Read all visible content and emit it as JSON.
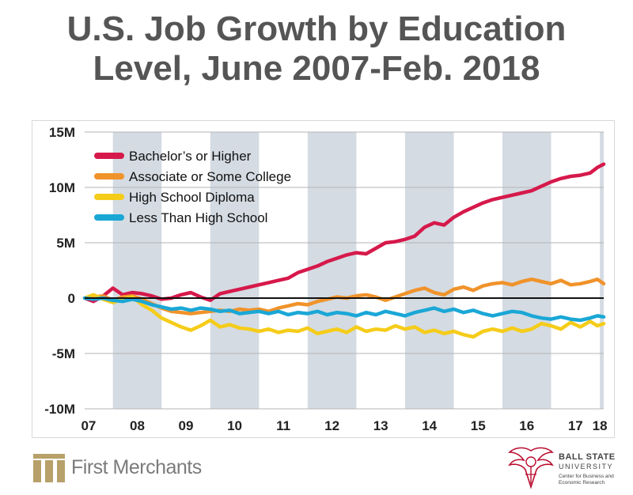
{
  "title_line1": "U.S. Job Growth by Education",
  "title_line2": "Level, June 2007-Feb. 2018",
  "chart_data": {
    "type": "line",
    "x_start": 2007.42,
    "x_end": 2018.08,
    "ylim": [
      -10,
      15
    ],
    "y_ticks": [
      15,
      10,
      5,
      0,
      -5,
      -10
    ],
    "y_tick_labels": [
      "15M",
      "10M",
      "5M",
      "0",
      "-5M",
      "-10M"
    ],
    "x_tick_labels": [
      "07",
      "08",
      "09",
      "10",
      "11",
      "12",
      "13",
      "14",
      "15",
      "16",
      "17",
      "18"
    ],
    "x_tick_positions": [
      2007.5,
      2008.5,
      2009.5,
      2010.5,
      2011.5,
      2012.5,
      2013.5,
      2014.5,
      2015.5,
      2016.5,
      2017.5,
      2018.0
    ],
    "shaded_bands": [
      [
        2008.0,
        2009.0
      ],
      [
        2010.0,
        2011.0
      ],
      [
        2012.0,
        2013.0
      ],
      [
        2014.0,
        2015.0
      ],
      [
        2016.0,
        2017.0
      ],
      [
        2018.0,
        2018.08
      ]
    ],
    "legend_position": "top-left",
    "series": [
      {
        "name": "Bachelor’s or Higher",
        "color": "#d6194b",
        "points": [
          [
            2007.42,
            0
          ],
          [
            2007.6,
            -0.3
          ],
          [
            2007.8,
            0.2
          ],
          [
            2008.0,
            0.9
          ],
          [
            2008.2,
            0.3
          ],
          [
            2008.4,
            0.5
          ],
          [
            2008.6,
            0.4
          ],
          [
            2008.8,
            0.2
          ],
          [
            2009.0,
            -0.1
          ],
          [
            2009.2,
            0
          ],
          [
            2009.4,
            0.3
          ],
          [
            2009.6,
            0.5
          ],
          [
            2009.8,
            0.1
          ],
          [
            2010.0,
            -0.2
          ],
          [
            2010.2,
            0.4
          ],
          [
            2010.4,
            0.6
          ],
          [
            2010.6,
            0.8
          ],
          [
            2010.8,
            1.0
          ],
          [
            2011.0,
            1.2
          ],
          [
            2011.2,
            1.4
          ],
          [
            2011.4,
            1.6
          ],
          [
            2011.6,
            1.8
          ],
          [
            2011.8,
            2.3
          ],
          [
            2012.0,
            2.6
          ],
          [
            2012.2,
            2.9
          ],
          [
            2012.4,
            3.3
          ],
          [
            2012.6,
            3.6
          ],
          [
            2012.8,
            3.9
          ],
          [
            2013.0,
            4.1
          ],
          [
            2013.2,
            4.0
          ],
          [
            2013.4,
            4.5
          ],
          [
            2013.6,
            5.0
          ],
          [
            2013.8,
            5.1
          ],
          [
            2014.0,
            5.3
          ],
          [
            2014.2,
            5.6
          ],
          [
            2014.4,
            6.4
          ],
          [
            2014.6,
            6.8
          ],
          [
            2014.8,
            6.6
          ],
          [
            2015.0,
            7.3
          ],
          [
            2015.2,
            7.8
          ],
          [
            2015.4,
            8.2
          ],
          [
            2015.6,
            8.6
          ],
          [
            2015.8,
            8.9
          ],
          [
            2016.0,
            9.1
          ],
          [
            2016.2,
            9.3
          ],
          [
            2016.4,
            9.5
          ],
          [
            2016.6,
            9.7
          ],
          [
            2016.8,
            10.1
          ],
          [
            2017.0,
            10.5
          ],
          [
            2017.2,
            10.8
          ],
          [
            2017.4,
            11.0
          ],
          [
            2017.6,
            11.1
          ],
          [
            2017.8,
            11.3
          ],
          [
            2017.95,
            11.8
          ],
          [
            2018.08,
            12.1
          ]
        ]
      },
      {
        "name": "Associate or Some College",
        "color": "#f0932b",
        "points": [
          [
            2007.42,
            0
          ],
          [
            2007.6,
            0.1
          ],
          [
            2007.8,
            0.2
          ],
          [
            2008.0,
            -0.2
          ],
          [
            2008.2,
            0.1
          ],
          [
            2008.4,
            0.2
          ],
          [
            2008.6,
            -0.1
          ],
          [
            2008.8,
            -0.5
          ],
          [
            2009.0,
            -0.9
          ],
          [
            2009.2,
            -1.2
          ],
          [
            2009.4,
            -1.3
          ],
          [
            2009.6,
            -1.4
          ],
          [
            2009.8,
            -1.3
          ],
          [
            2010.0,
            -1.2
          ],
          [
            2010.2,
            -1.1
          ],
          [
            2010.4,
            -1.2
          ],
          [
            2010.6,
            -1.0
          ],
          [
            2010.8,
            -1.1
          ],
          [
            2011.0,
            -1.0
          ],
          [
            2011.2,
            -1.2
          ],
          [
            2011.4,
            -0.9
          ],
          [
            2011.6,
            -0.7
          ],
          [
            2011.8,
            -0.5
          ],
          [
            2012.0,
            -0.6
          ],
          [
            2012.2,
            -0.3
          ],
          [
            2012.4,
            -0.1
          ],
          [
            2012.6,
            0.1
          ],
          [
            2012.8,
            0
          ],
          [
            2013.0,
            0.2
          ],
          [
            2013.2,
            0.3
          ],
          [
            2013.4,
            0.1
          ],
          [
            2013.6,
            -0.2
          ],
          [
            2013.8,
            0.1
          ],
          [
            2014.0,
            0.4
          ],
          [
            2014.2,
            0.7
          ],
          [
            2014.4,
            0.9
          ],
          [
            2014.6,
            0.5
          ],
          [
            2014.8,
            0.3
          ],
          [
            2015.0,
            0.8
          ],
          [
            2015.2,
            1.0
          ],
          [
            2015.4,
            0.7
          ],
          [
            2015.6,
            1.1
          ],
          [
            2015.8,
            1.3
          ],
          [
            2016.0,
            1.4
          ],
          [
            2016.2,
            1.2
          ],
          [
            2016.4,
            1.5
          ],
          [
            2016.6,
            1.7
          ],
          [
            2016.8,
            1.5
          ],
          [
            2017.0,
            1.3
          ],
          [
            2017.2,
            1.6
          ],
          [
            2017.4,
            1.2
          ],
          [
            2017.6,
            1.3
          ],
          [
            2017.8,
            1.5
          ],
          [
            2017.95,
            1.7
          ],
          [
            2018.08,
            1.3
          ]
        ]
      },
      {
        "name": "High School Diploma",
        "color": "#f5cc19",
        "points": [
          [
            2007.42,
            0
          ],
          [
            2007.6,
            0.3
          ],
          [
            2007.8,
            -0.1
          ],
          [
            2008.0,
            -0.4
          ],
          [
            2008.2,
            -0.1
          ],
          [
            2008.4,
            0.1
          ],
          [
            2008.6,
            -0.6
          ],
          [
            2008.8,
            -1.1
          ],
          [
            2009.0,
            -1.8
          ],
          [
            2009.2,
            -2.2
          ],
          [
            2009.4,
            -2.6
          ],
          [
            2009.6,
            -2.9
          ],
          [
            2009.8,
            -2.5
          ],
          [
            2010.0,
            -2.0
          ],
          [
            2010.2,
            -2.6
          ],
          [
            2010.4,
            -2.4
          ],
          [
            2010.6,
            -2.7
          ],
          [
            2010.8,
            -2.8
          ],
          [
            2011.0,
            -3.0
          ],
          [
            2011.2,
            -2.8
          ],
          [
            2011.4,
            -3.1
          ],
          [
            2011.6,
            -2.9
          ],
          [
            2011.8,
            -3.0
          ],
          [
            2012.0,
            -2.7
          ],
          [
            2012.2,
            -3.2
          ],
          [
            2012.4,
            -3.0
          ],
          [
            2012.6,
            -2.8
          ],
          [
            2012.8,
            -3.1
          ],
          [
            2013.0,
            -2.6
          ],
          [
            2013.2,
            -3.0
          ],
          [
            2013.4,
            -2.8
          ],
          [
            2013.6,
            -2.9
          ],
          [
            2013.8,
            -2.5
          ],
          [
            2014.0,
            -2.8
          ],
          [
            2014.2,
            -2.6
          ],
          [
            2014.4,
            -3.1
          ],
          [
            2014.6,
            -2.9
          ],
          [
            2014.8,
            -3.2
          ],
          [
            2015.0,
            -3.0
          ],
          [
            2015.2,
            -3.3
          ],
          [
            2015.4,
            -3.5
          ],
          [
            2015.6,
            -3.0
          ],
          [
            2015.8,
            -2.8
          ],
          [
            2016.0,
            -3.0
          ],
          [
            2016.2,
            -2.7
          ],
          [
            2016.4,
            -3.0
          ],
          [
            2016.6,
            -2.8
          ],
          [
            2016.8,
            -2.3
          ],
          [
            2017.0,
            -2.5
          ],
          [
            2017.2,
            -2.8
          ],
          [
            2017.4,
            -2.2
          ],
          [
            2017.6,
            -2.6
          ],
          [
            2017.8,
            -2.1
          ],
          [
            2017.95,
            -2.5
          ],
          [
            2018.08,
            -2.3
          ]
        ]
      },
      {
        "name": "Less Than High School",
        "color": "#1aa7d6",
        "points": [
          [
            2007.42,
            0
          ],
          [
            2007.6,
            -0.1
          ],
          [
            2007.8,
            0
          ],
          [
            2008.0,
            -0.2
          ],
          [
            2008.2,
            -0.3
          ],
          [
            2008.4,
            -0.1
          ],
          [
            2008.6,
            -0.3
          ],
          [
            2008.8,
            -0.6
          ],
          [
            2009.0,
            -0.8
          ],
          [
            2009.2,
            -1.0
          ],
          [
            2009.4,
            -0.9
          ],
          [
            2009.6,
            -1.1
          ],
          [
            2009.8,
            -0.9
          ],
          [
            2010.0,
            -1.0
          ],
          [
            2010.2,
            -1.2
          ],
          [
            2010.4,
            -1.1
          ],
          [
            2010.6,
            -1.4
          ],
          [
            2010.8,
            -1.3
          ],
          [
            2011.0,
            -1.2
          ],
          [
            2011.2,
            -1.4
          ],
          [
            2011.4,
            -1.2
          ],
          [
            2011.6,
            -1.5
          ],
          [
            2011.8,
            -1.3
          ],
          [
            2012.0,
            -1.4
          ],
          [
            2012.2,
            -1.2
          ],
          [
            2012.4,
            -1.5
          ],
          [
            2012.6,
            -1.3
          ],
          [
            2012.8,
            -1.4
          ],
          [
            2013.0,
            -1.6
          ],
          [
            2013.2,
            -1.3
          ],
          [
            2013.4,
            -1.5
          ],
          [
            2013.6,
            -1.2
          ],
          [
            2013.8,
            -1.4
          ],
          [
            2014.0,
            -1.6
          ],
          [
            2014.2,
            -1.3
          ],
          [
            2014.4,
            -1.1
          ],
          [
            2014.6,
            -0.9
          ],
          [
            2014.8,
            -1.2
          ],
          [
            2015.0,
            -1.0
          ],
          [
            2015.2,
            -1.3
          ],
          [
            2015.4,
            -1.1
          ],
          [
            2015.6,
            -1.4
          ],
          [
            2015.8,
            -1.6
          ],
          [
            2016.0,
            -1.4
          ],
          [
            2016.2,
            -1.2
          ],
          [
            2016.4,
            -1.3
          ],
          [
            2016.6,
            -1.6
          ],
          [
            2016.8,
            -1.8
          ],
          [
            2017.0,
            -1.9
          ],
          [
            2017.2,
            -1.7
          ],
          [
            2017.4,
            -1.9
          ],
          [
            2017.6,
            -2.0
          ],
          [
            2017.8,
            -1.8
          ],
          [
            2017.95,
            -1.6
          ],
          [
            2018.08,
            -1.7
          ]
        ]
      }
    ]
  },
  "logos": {
    "first_merchants": "First Merchants",
    "bsu_name1": "BALL STATE",
    "bsu_name2": "UNIVERSITY",
    "bsu_center": "Center for Business and Economic Research",
    "fm_color": "#b8a06a",
    "bsu_color": "#ba0c2f"
  }
}
